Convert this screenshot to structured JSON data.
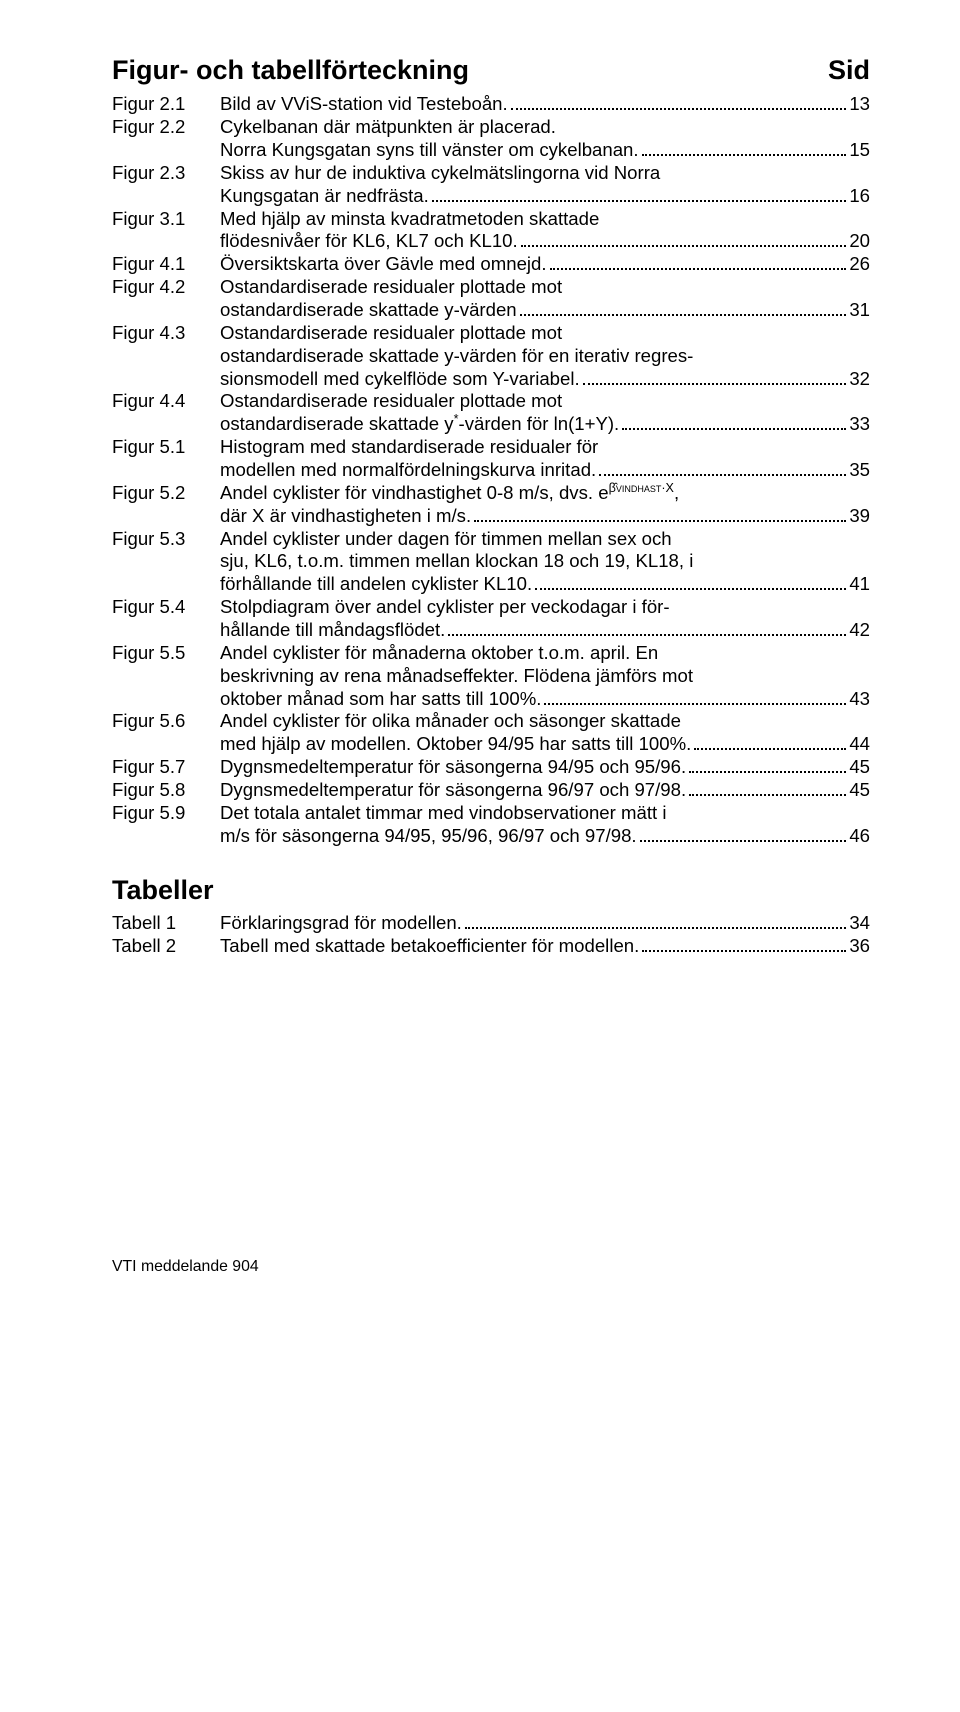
{
  "title_left": "Figur- och tabellförteckning",
  "title_right": "Sid",
  "figures": [
    {
      "label": "Figur 2.1",
      "lines": [
        "Bild av VViS-station vid Testeboån."
      ],
      "page": "13"
    },
    {
      "label": "Figur 2.2",
      "lines": [
        "Cykelbanan där mätpunkten är placerad.",
        "Norra Kungsgatan syns till vänster om cykelbanan."
      ],
      "page": "15"
    },
    {
      "label": "Figur 2.3",
      "lines": [
        "Skiss av hur de induktiva cykelmätslingorna vid Norra",
        "Kungsgatan är nedfrästa."
      ],
      "page": "16"
    },
    {
      "label": "Figur 3.1",
      "lines": [
        "Med hjälp av minsta kvadratmetoden skattade",
        "flödesnivåer för KL6, KL7 och KL10."
      ],
      "page": "20"
    },
    {
      "label": "Figur 4.1",
      "lines": [
        "Översiktskarta över Gävle med omnejd."
      ],
      "page": "26"
    },
    {
      "label": "Figur 4.2",
      "lines": [
        "Ostandardiserade residualer plottade mot",
        "ostandardiserade skattade y-värden"
      ],
      "page": "31"
    },
    {
      "label": "Figur 4.3",
      "lines": [
        "Ostandardiserade residualer plottade mot",
        "ostandardiserade skattade y-värden för en iterativ regres-",
        "sionsmodell med cykelflöde som Y-variabel."
      ],
      "page": "32"
    },
    {
      "label": "Figur 4.4",
      "lines": [
        "Ostandardiserade residualer plottade mot",
        "ostandardiserade skattade y*-värden för ln(1+Y)."
      ],
      "page": "33",
      "sup_index": 1,
      "sup_target": "y*",
      "sup_replace": "y<sup>*</sup>"
    },
    {
      "label": "Figur 5.1",
      "lines": [
        "Histogram med standardiserade residualer för",
        "modellen med normalfördelningskurva inritad."
      ],
      "page": "35"
    },
    {
      "label": "Figur 5.2",
      "lines": [
        "Andel cyklister för vindhastighet 0-8 m/s, dvs. __EXP__,",
        "där X är vindhastigheten i m/s."
      ],
      "page": "39",
      "exp": true
    },
    {
      "label": "Figur 5.3",
      "lines": [
        "Andel cyklister under dagen för timmen mellan sex och",
        "sju, KL6, t.o.m. timmen mellan klockan 18 och 19, KL18, i",
        "förhållande till andelen cyklister KL10."
      ],
      "page": "41"
    },
    {
      "label": "Figur 5.4",
      "lines": [
        "Stolpdiagram över andel cyklister per veckodagar i för-",
        "hållande till måndagsflödet."
      ],
      "page": "42"
    },
    {
      "label": "Figur 5.5",
      "lines": [
        "Andel cyklister för månaderna oktober t.o.m. april. En",
        "beskrivning av rena månadseffekter. Flödena jämförs mot",
        "oktober månad som har satts till 100%."
      ],
      "page": "43"
    },
    {
      "label": "Figur 5.6",
      "lines": [
        "Andel cyklister för olika månader och säsonger skattade",
        "med hjälp av modellen. Oktober 94/95 har satts till 100%."
      ],
      "page": "44"
    },
    {
      "label": "Figur 5.7",
      "lines": [
        "Dygnsmedeltemperatur för säsongerna 94/95 och 95/96."
      ],
      "page": "45"
    },
    {
      "label": "Figur 5.8",
      "lines": [
        "Dygnsmedeltemperatur för säsongerna 96/97 och 97/98."
      ],
      "page": "45"
    },
    {
      "label": "Figur 5.9",
      "lines": [
        "Det totala antalet timmar med vindobservationer mätt i",
        "m/s för säsongerna 94/95, 95/96, 96/97 och 97/98."
      ],
      "page": "46"
    }
  ],
  "tables_heading": "Tabeller",
  "tables": [
    {
      "label": "Tabell 1",
      "lines": [
        "Förklaringsgrad för modellen."
      ],
      "page": "34"
    },
    {
      "label": "Tabell 2",
      "lines": [
        "Tabell med skattade betakoefficienter för modellen."
      ],
      "page": "36"
    }
  ],
  "footer": "VTI meddelande 904",
  "exp_html": "e<span class=\"exp\">β̂<sub style=\"font-size:9px;vertical-align:baseline;\">VINDHAST</sub>·X</span>"
}
